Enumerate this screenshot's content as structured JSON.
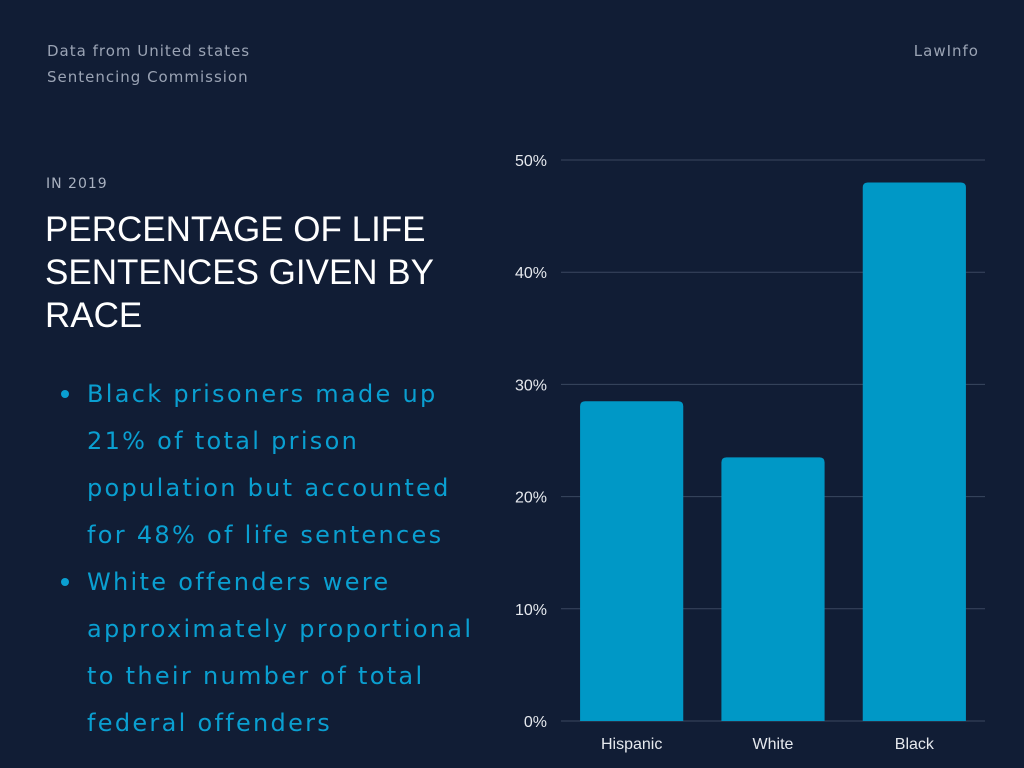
{
  "header": {
    "source_line1": "Data from United states",
    "source_line2": "Sentencing Commission",
    "brand": "LawInfo"
  },
  "headline": {
    "kicker": "IN 2019",
    "title": "PERCENTAGE OF LIFE SENTENCES GIVEN BY RACE"
  },
  "bullets": [
    "Black prisoners made up 21% of total prison population but accounted for 48% of life sentences",
    "White offenders were approximately proportional to their number of total federal offenders"
  ],
  "colors": {
    "background": "#111d35",
    "bar": "#0098c6",
    "bullet_text": "#0a9fd1",
    "gridline": "#3a4760"
  },
  "chart_data": {
    "type": "bar",
    "categories": [
      "Hispanic",
      "White",
      "Black"
    ],
    "values": [
      28.5,
      23.5,
      48
    ],
    "y_ticks": [
      "0%",
      "10%",
      "20%",
      "30%",
      "40%",
      "50%"
    ],
    "ylim": [
      0,
      50
    ],
    "grid": true,
    "title": "",
    "xlabel": "",
    "ylabel": ""
  }
}
